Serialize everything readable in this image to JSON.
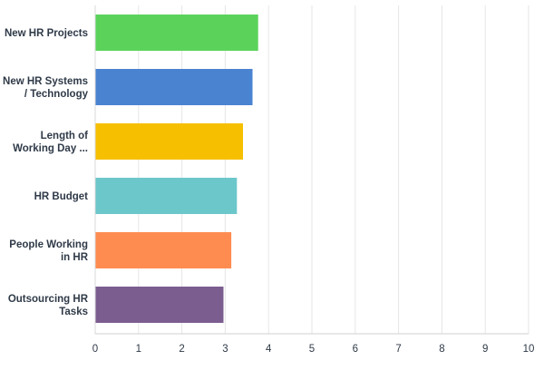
{
  "chart_data": {
    "type": "bar",
    "orientation": "horizontal",
    "categories": [
      [
        "New HR Projects"
      ],
      [
        "New HR Systems",
        "/ Technology"
      ],
      [
        "Length of",
        "Working Day ..."
      ],
      [
        "HR Budget"
      ],
      [
        "People Working",
        "in HR"
      ],
      [
        "Outsourcing HR",
        "Tasks"
      ]
    ],
    "values": [
      3.76,
      3.63,
      3.41,
      3.27,
      3.14,
      2.96
    ],
    "colors": [
      "#5bd35b",
      "#4a83d0",
      "#f6c000",
      "#6cc7cb",
      "#fe8c50",
      "#7c5d90"
    ],
    "xlim": [
      0,
      10
    ],
    "xticks": [
      "0",
      "1",
      "2",
      "3",
      "4",
      "5",
      "6",
      "7",
      "8",
      "9",
      "10"
    ],
    "grid": true,
    "title": "",
    "xlabel": "",
    "ylabel": ""
  }
}
